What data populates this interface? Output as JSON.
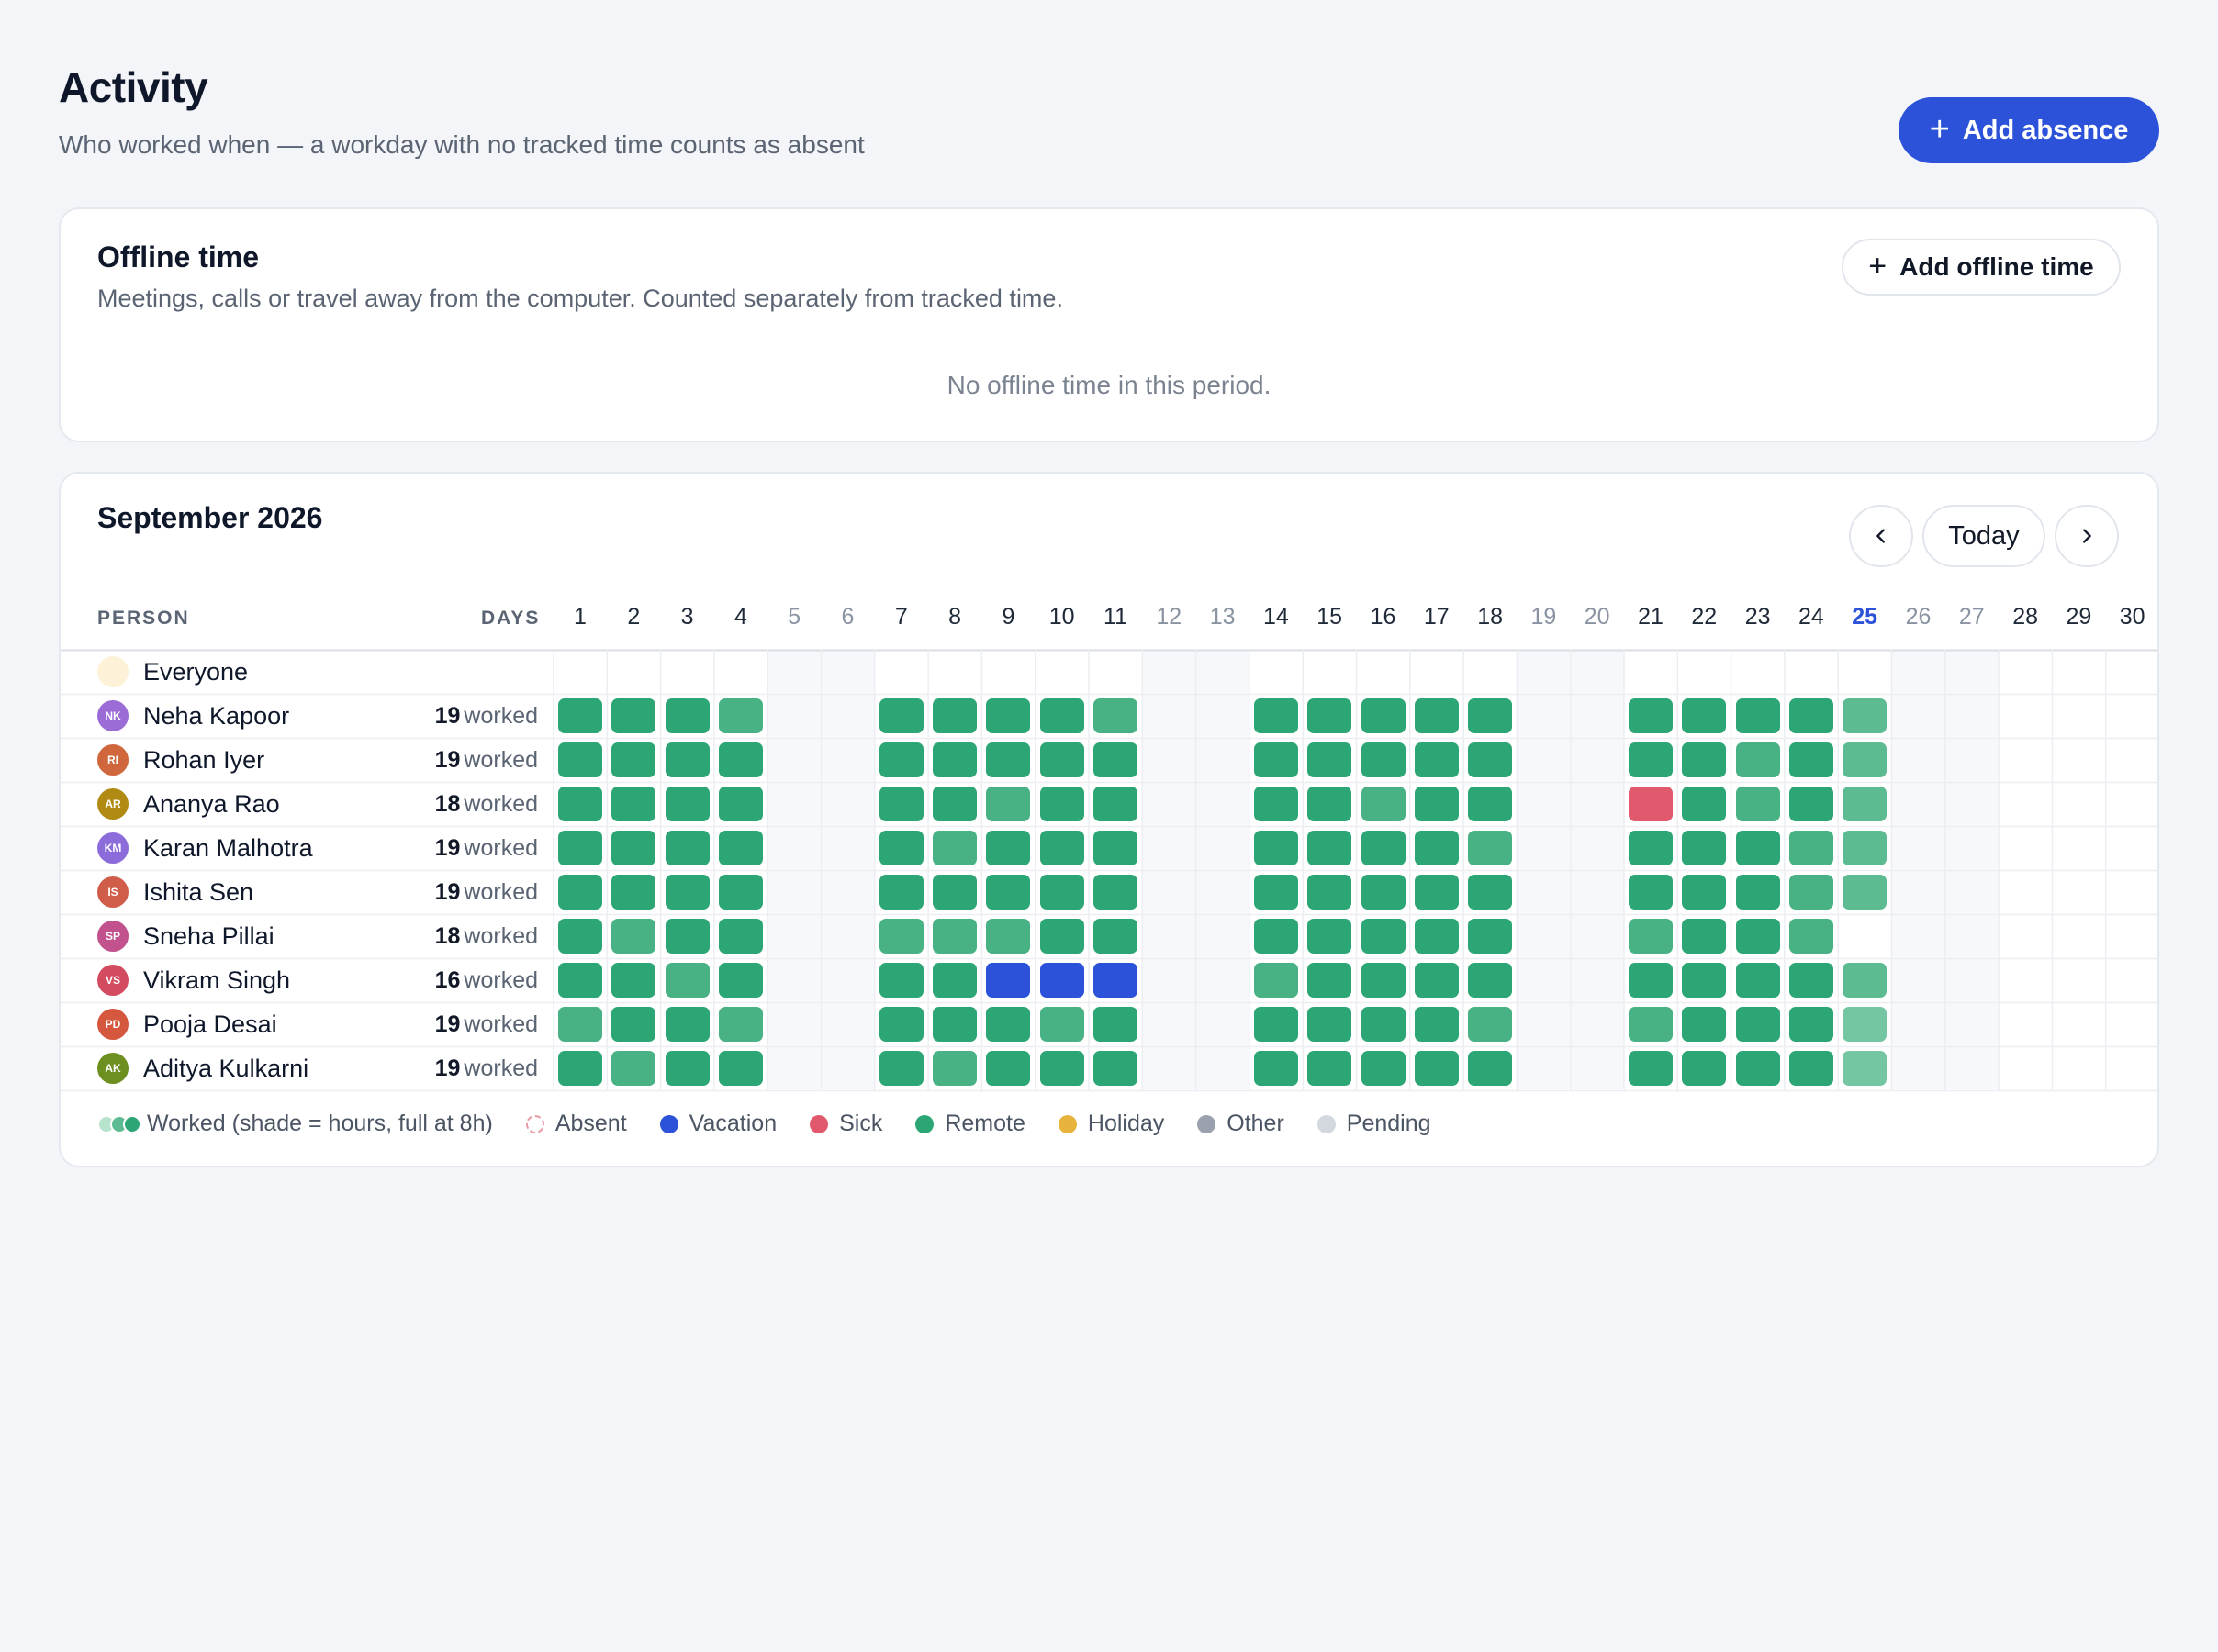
{
  "header": {
    "title": "Activity",
    "subtitle": "Who worked when — a workday with no tracked time counts as absent",
    "add_absence_label": "Add absence"
  },
  "offline": {
    "title": "Offline time",
    "subtitle": "Meetings, calls or travel away from the computer. Counted separately from tracked time.",
    "add_label": "Add offline time",
    "empty_text": "No offline time in this period."
  },
  "calendar": {
    "month_label": "September 2026",
    "today_label": "Today",
    "person_header": "PERSON",
    "days_header": "DAYS",
    "worked_suffix": "worked",
    "today_day": 25,
    "days": [
      1,
      2,
      3,
      4,
      5,
      6,
      7,
      8,
      9,
      10,
      11,
      12,
      13,
      14,
      15,
      16,
      17,
      18,
      19,
      20,
      21,
      22,
      23,
      24,
      25,
      26,
      27,
      28,
      29,
      30
    ],
    "weekend_days": [
      5,
      6,
      12,
      13,
      19,
      20,
      26,
      27
    ],
    "everyone_label": "Everyone",
    "people": [
      {
        "initials": "NK",
        "name": "Neha Kapoor",
        "worked": 19,
        "avatar_color": "#9b6bd6",
        "cells": "FFFM..FFFFM..FFFFF..FFFFL"
      },
      {
        "initials": "RI",
        "name": "Rohan Iyer",
        "worked": 19,
        "avatar_color": "#d0673c",
        "cells": "FFFF..FFFFF..FFFFF..FFMFL"
      },
      {
        "initials": "AR",
        "name": "Ananya Rao",
        "worked": 18,
        "avatar_color": "#b08a12",
        "cells": "FFFF..FFMFF..FFMFF..SFMFL"
      },
      {
        "initials": "KM",
        "name": "Karan Malhotra",
        "worked": 19,
        "avatar_color": "#8c6cdb",
        "cells": "FFFF..FMFFF..FFFFM..FFFML"
      },
      {
        "initials": "IS",
        "name": "Ishita Sen",
        "worked": 19,
        "avatar_color": "#d05c4a",
        "cells": "FFFF..FFFFF..FFFFF..FFFML"
      },
      {
        "initials": "SP",
        "name": "Sneha Pillai",
        "worked": 18,
        "avatar_color": "#c2528e",
        "cells": "FMFF..MMMFF..FFFFF..MFFM."
      },
      {
        "initials": "VS",
        "name": "Vikram Singh",
        "worked": 16,
        "avatar_color": "#d34b5e",
        "cells": "FFMF..FFVVV..MFFFF..FFFFL"
      },
      {
        "initials": "PD",
        "name": "Pooja Desai",
        "worked": 19,
        "avatar_color": "#d4573e",
        "cells": "MFFM..FFFMF..FFFFM..MFFFP"
      },
      {
        "initials": "AK",
        "name": "Aditya Kulkarni",
        "worked": 19,
        "avatar_color": "#6d8f1f",
        "cells": "FMFF..FMFFF..FFFFF..FFFFP"
      }
    ]
  },
  "legend": {
    "worked_label": "Worked (shade = hours, full at 8h)",
    "absent_label": "Absent",
    "vacation_label": "Vacation",
    "sick_label": "Sick",
    "remote_label": "Remote",
    "holiday_label": "Holiday",
    "other_label": "Other",
    "pending_label": "Pending"
  },
  "colors": {
    "full": "#2da676",
    "mid": "#49b285",
    "light": "#5dbb92",
    "pale": "#74c6a2",
    "vacation": "#2b52d9",
    "sick": "#e0596d",
    "remote": "#2da676",
    "holiday": "#e8b33c",
    "other": "#9aa0ad",
    "pending": "#d3d7de",
    "accent": "#2b52d9"
  }
}
